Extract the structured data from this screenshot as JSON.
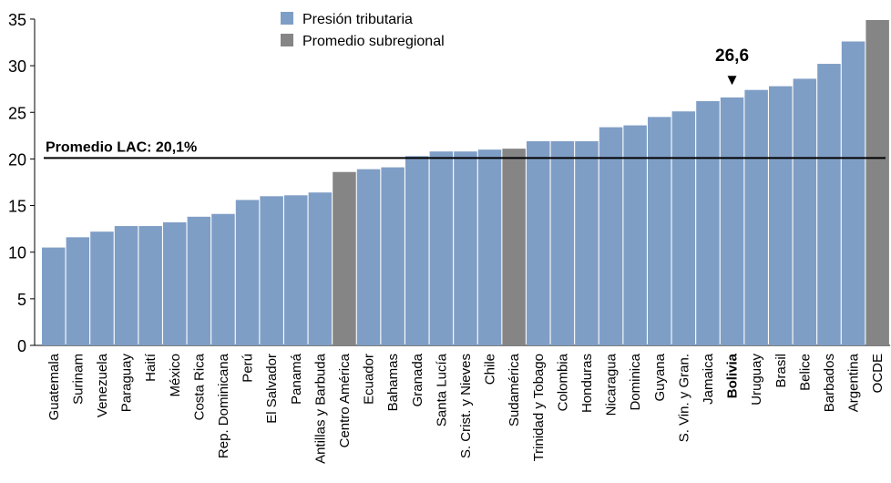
{
  "chart_data": {
    "type": "bar",
    "title": "",
    "xlabel": "",
    "ylabel": "",
    "ylim": [
      0,
      35
    ],
    "yticks": [
      0,
      5,
      10,
      15,
      20,
      25,
      30,
      35
    ],
    "grid": false,
    "legend_position": "top-center",
    "legend": [
      {
        "name": "Presión tributaria",
        "color": "#7f9ec6"
      },
      {
        "name": "Promedio subregional",
        "color": "#858585"
      }
    ],
    "categories": [
      "Guatemala",
      "Surinam",
      "Venezuela",
      "Paraguay",
      "Haití",
      "México",
      "Costa Rica",
      "Rep. Dominicana",
      "Perú",
      "El Salvador",
      "Panamá",
      "Antillas y Barbuda",
      "Centro América",
      "Ecuador",
      "Bahamas",
      "Granada",
      "Santa Lucía",
      "S. Crist. y Nieves",
      "Chile",
      "Sudamérica",
      "Trinidad y Tobago",
      "Colombia",
      "Honduras",
      "Nicaragua",
      "Dominica",
      "Guyana",
      "S. Vin. y Gran.",
      "Jamaica",
      "Bolivia",
      "Uruguay",
      "Brasil",
      "Belice",
      "Barbados",
      "Argentina",
      "OCDE"
    ],
    "values": [
      10.5,
      11.6,
      12.2,
      12.8,
      12.8,
      13.2,
      13.8,
      14.1,
      15.6,
      16.0,
      16.1,
      16.4,
      18.6,
      18.9,
      19.1,
      20.3,
      20.8,
      20.8,
      21.0,
      21.1,
      21.9,
      21.9,
      21.9,
      23.4,
      23.6,
      24.5,
      25.1,
      26.2,
      26.6,
      27.4,
      27.8,
      28.6,
      30.2,
      32.6,
      34.9
    ],
    "series_type": [
      "country",
      "country",
      "country",
      "country",
      "country",
      "country",
      "country",
      "country",
      "country",
      "country",
      "country",
      "country",
      "subregional",
      "country",
      "country",
      "country",
      "country",
      "country",
      "country",
      "subregional",
      "country",
      "country",
      "country",
      "country",
      "country",
      "country",
      "country",
      "country",
      "country",
      "country",
      "country",
      "country",
      "country",
      "country",
      "subregional"
    ],
    "highlight_category": "Bolivia",
    "reference_line": {
      "value": 20.1,
      "label": "Promedio LAC: 20,1%"
    },
    "annotation": {
      "category": "Bolivia",
      "text": "26,6",
      "marker": "▼"
    },
    "colors": {
      "country": "#7f9ec6",
      "subregional": "#858585",
      "axis": "#000000"
    }
  }
}
